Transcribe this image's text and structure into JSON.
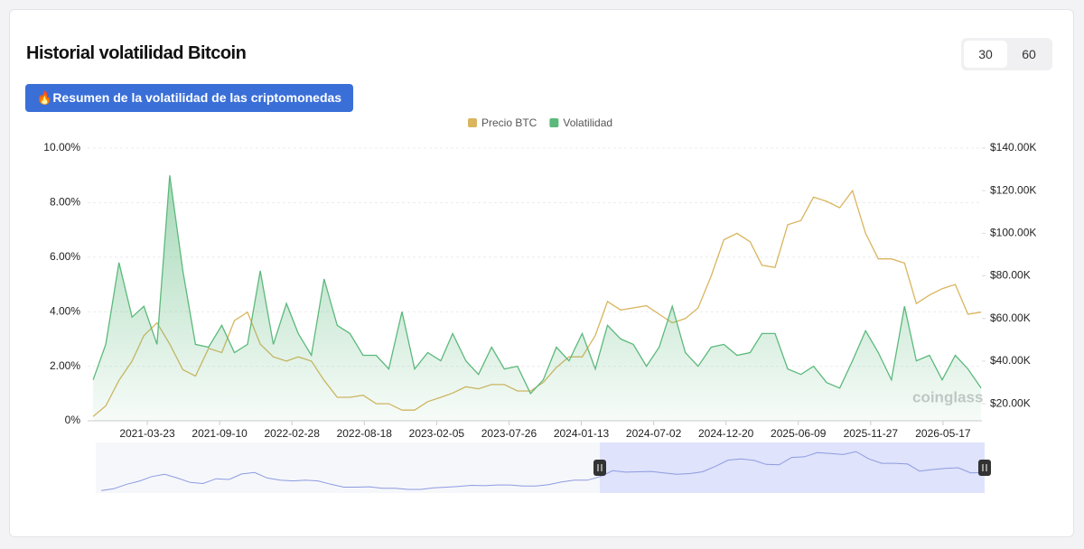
{
  "header": {
    "title": "Historial volatilidad Bitcoin",
    "button": "🔥Resumen de la volatilidad de las criptomonedas",
    "periods": [
      "30",
      "60"
    ]
  },
  "watermark": "coinglass",
  "chart_data": {
    "type": "line",
    "x": [
      "2020-11-15",
      "2020-12-15",
      "2021-01-15",
      "2021-02-15",
      "2021-03-15",
      "2021-04-15",
      "2021-05-15",
      "2021-06-15",
      "2021-07-15",
      "2021-08-15",
      "2021-09-15",
      "2021-10-15",
      "2021-11-15",
      "2021-12-15",
      "2022-01-15",
      "2022-02-15",
      "2022-03-15",
      "2022-04-15",
      "2022-05-15",
      "2022-06-15",
      "2022-07-15",
      "2022-08-15",
      "2022-09-15",
      "2022-10-15",
      "2022-11-15",
      "2022-12-15",
      "2023-01-15",
      "2023-02-15",
      "2023-03-15",
      "2023-04-15",
      "2023-05-15",
      "2023-06-15",
      "2023-07-15",
      "2023-08-15",
      "2023-09-15",
      "2023-10-15",
      "2023-11-15",
      "2023-12-15",
      "2024-01-15",
      "2024-02-15",
      "2024-03-15",
      "2024-04-15",
      "2024-05-15",
      "2024-06-15",
      "2024-07-15",
      "2024-08-15",
      "2024-09-15",
      "2024-10-15",
      "2024-11-15",
      "2024-12-15",
      "2025-01-15",
      "2025-02-15",
      "2025-03-15",
      "2025-04-15",
      "2025-05-15",
      "2025-06-15",
      "2025-07-15",
      "2025-08-15",
      "2025-09-15",
      "2025-10-15",
      "2025-11-15",
      "2025-12-15",
      "2026-01-15",
      "2026-02-15",
      "2026-03-15",
      "2026-04-15",
      "2026-05-15",
      "2026-06-15",
      "2026-07-15",
      "2026-08-15"
    ],
    "series": [
      {
        "name": "Precio BTC",
        "color": "#d9b55e",
        "axis": "y2",
        "values": [
          14000,
          19000,
          31000,
          40000,
          52000,
          58000,
          48000,
          36000,
          33000,
          46000,
          44000,
          59000,
          63000,
          48000,
          42000,
          40000,
          42000,
          40000,
          31000,
          23000,
          23000,
          24000,
          20000,
          20000,
          17000,
          17000,
          21000,
          23000,
          25000,
          28000,
          27000,
          29000,
          29000,
          26000,
          26000,
          30000,
          37000,
          42000,
          42000,
          52000,
          68000,
          64000,
          65000,
          66000,
          62000,
          58000,
          60000,
          65000,
          80000,
          97000,
          100000,
          96000,
          85000,
          84000,
          104000,
          106000,
          117000,
          115000,
          112000,
          120000,
          100000,
          88000,
          88000,
          86000,
          67000,
          71000,
          74000,
          76000,
          62000,
          63000
        ]
      },
      {
        "name": "Volatilidad",
        "color": "#5cb97c",
        "values": [
          1.5,
          2.8,
          5.8,
          3.8,
          4.2,
          2.8,
          9.0,
          5.5,
          2.8,
          2.7,
          3.5,
          2.5,
          2.8,
          5.5,
          2.8,
          4.3,
          3.2,
          2.4,
          5.2,
          3.5,
          3.2,
          2.4,
          2.4,
          1.9,
          4.0,
          1.9,
          2.5,
          2.2,
          3.2,
          2.2,
          1.7,
          2.7,
          1.9,
          2.0,
          1.0,
          1.5,
          2.7,
          2.2,
          3.2,
          1.9,
          3.5,
          3.0,
          2.8,
          2.0,
          2.7,
          4.2,
          2.5,
          2.0,
          2.7,
          2.8,
          2.4,
          2.5,
          3.2,
          3.2,
          1.9,
          1.7,
          2.0,
          1.4,
          1.2,
          2.2,
          3.3,
          2.5,
          1.5,
          4.2,
          2.2,
          2.4,
          1.5,
          2.4,
          1.9,
          1.2
        ]
      }
    ],
    "xlim": [
      "2020-11-02",
      "2026-08-17"
    ],
    "xticks": [
      "2021-03-23",
      "2021-09-10",
      "2022-02-28",
      "2022-08-18",
      "2023-02-05",
      "2023-07-26",
      "2024-01-13",
      "2024-07-02",
      "2024-12-20",
      "2025-06-09",
      "2025-11-27",
      "2026-05-17"
    ],
    "ylim": [
      0,
      10
    ],
    "yticks": [
      {
        "value": 0,
        "label": "0%"
      },
      {
        "value": 2,
        "label": "2.00%"
      },
      {
        "value": 4,
        "label": "4.00%"
      },
      {
        "value": 6,
        "label": "6.00%"
      },
      {
        "value": 8,
        "label": "8.00%"
      },
      {
        "value": 10,
        "label": "10.00%"
      }
    ],
    "y2lim": [
      12000,
      140000
    ],
    "y2ticks": [
      {
        "value": 20000,
        "label": "$20.00K"
      },
      {
        "value": 40000,
        "label": "$40.00K"
      },
      {
        "value": 60000,
        "label": "$60.00K"
      },
      {
        "value": 80000,
        "label": "$80.00K"
      },
      {
        "value": 100000,
        "label": "$100.00K"
      },
      {
        "value": 120000,
        "label": "$120.00K"
      },
      {
        "value": 140000,
        "label": "$140.00K"
      }
    ],
    "grid": true,
    "legend": "top"
  }
}
